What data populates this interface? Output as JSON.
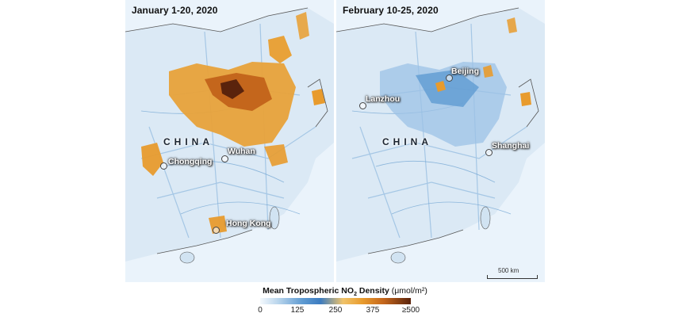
{
  "panels": [
    {
      "title": "January 1-20, 2020",
      "country_label": "CHINA",
      "cities": [
        "Chongqing",
        "Wuhan",
        "Hong Kong"
      ]
    },
    {
      "title": "February 10-25, 2020",
      "country_label": "CHINA",
      "cities": [
        "Lanzhou",
        "Beijing",
        "Shanghai"
      ]
    }
  ],
  "scale_bar": {
    "label": "500 km"
  },
  "legend": {
    "title": "Mean Tropospheric NO",
    "title_sub": "2",
    "title_tail": " Density",
    "unit": "(μmol/m²)",
    "ticks": [
      "0",
      "125",
      "250",
      "375",
      "≥500"
    ],
    "colors": [
      "#f4f9fd",
      "#5f9bd2",
      "#f0c36a",
      "#c4661c",
      "#5a230c"
    ]
  }
}
